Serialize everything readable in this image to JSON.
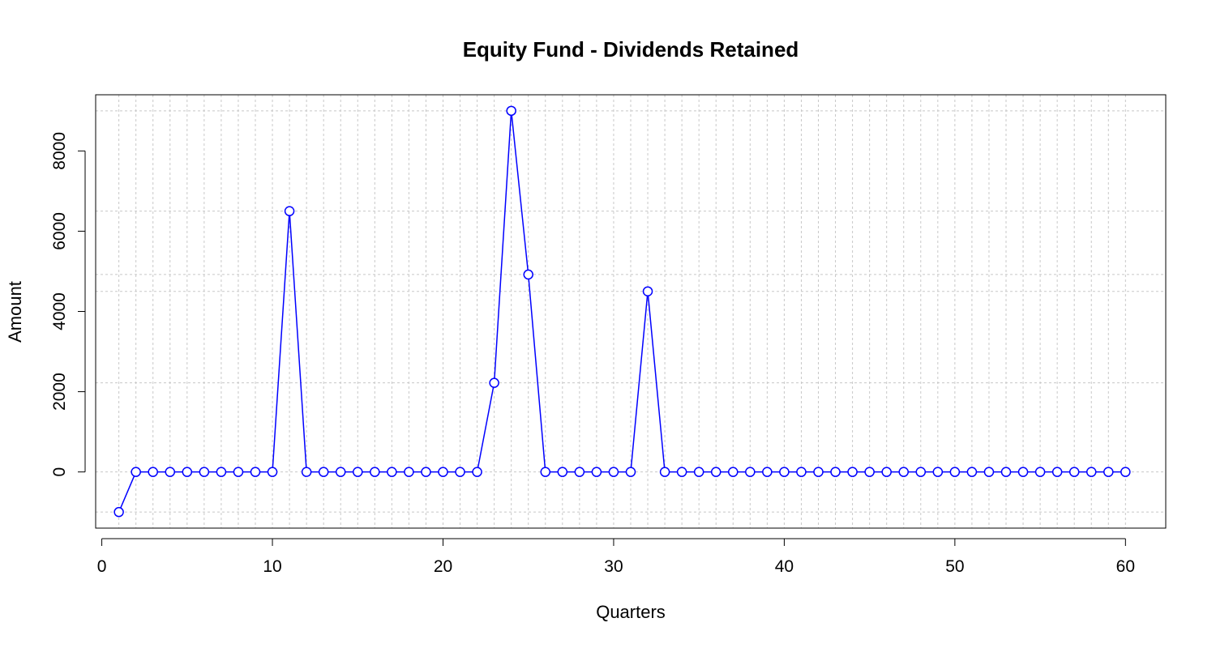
{
  "chart_data": {
    "type": "line",
    "title": "Equity Fund - Dividends Retained",
    "xlabel": "Quarters",
    "ylabel": "Amount",
    "xlim": [
      -0.36,
      62.36
    ],
    "ylim": [
      -1400,
      9400
    ],
    "x_ticks": [
      0,
      10,
      20,
      30,
      40,
      50,
      60
    ],
    "y_ticks": [
      0,
      2000,
      4000,
      6000,
      8000
    ],
    "grid": true,
    "legend": "none",
    "series": [
      {
        "color": "#0000ff",
        "marker": "open-circle",
        "x": [
          1,
          2,
          3,
          4,
          5,
          6,
          7,
          8,
          9,
          10,
          11,
          12,
          13,
          14,
          15,
          16,
          17,
          18,
          19,
          20,
          21,
          22,
          23,
          24,
          25,
          26,
          27,
          28,
          29,
          30,
          31,
          32,
          33,
          34,
          35,
          36,
          37,
          38,
          39,
          40,
          41,
          42,
          43,
          44,
          45,
          46,
          47,
          48,
          49,
          50,
          51,
          52,
          53,
          54,
          55,
          56,
          57,
          58,
          59,
          60
        ],
        "y": [
          -1000,
          0,
          0,
          0,
          0,
          0,
          0,
          0,
          0,
          0,
          6500,
          0,
          0,
          0,
          0,
          0,
          0,
          0,
          0,
          0,
          0,
          0,
          2220,
          9000,
          4920,
          0,
          0,
          0,
          0,
          0,
          0,
          4500,
          0,
          0,
          0,
          0,
          0,
          0,
          0,
          0,
          0,
          0,
          0,
          0,
          0,
          0,
          0,
          0,
          0,
          0,
          0,
          0,
          0,
          0,
          0,
          0,
          0,
          0,
          0,
          0
        ]
      }
    ]
  }
}
